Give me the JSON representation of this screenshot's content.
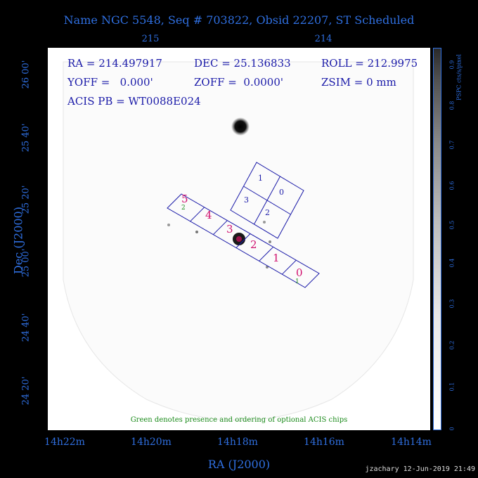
{
  "title": "Name NGC 5548, Seq # 703822, Obsid 22207, ST Scheduled",
  "top_axis_ticks": [
    "215",
    "214"
  ],
  "info": {
    "ra": "RA = 214.497917",
    "dec": "DEC = 25.136833",
    "roll": "ROLL = 212.9975",
    "yoff": "YOFF =   0.000'",
    "zoff": "ZOFF =  0.0000'",
    "zsim": "ZSIM = 0 mm",
    "acis_pb": "ACIS PB = WT0088E024"
  },
  "chips": {
    "acis_i": [
      "0",
      "1",
      "2",
      "3"
    ],
    "acis_s": [
      "0",
      "1",
      "2",
      "3",
      "4",
      "5"
    ],
    "optional": [
      "1",
      "2"
    ],
    "colors": {
      "acis_s_label": "#d0106e",
      "acis_i_label": "#1a1aa8",
      "outline": "#1a1aa8",
      "optional": "#1a8a1a"
    }
  },
  "note": "Green denotes presence and ordering of optional ACIS chips",
  "x_axis": {
    "label": "RA (J2000)",
    "ticks": [
      "14h22m",
      "14h20m",
      "14h18m",
      "14h16m",
      "14h14m"
    ]
  },
  "y_axis": {
    "label": "Dec (J2000)",
    "ticks": [
      "26 00'",
      "25 40'",
      "25 20'",
      "25 00'",
      "24 40'",
      "24 20'"
    ]
  },
  "colorbar": {
    "label": "PSPC cts/s/pixel",
    "ticks": [
      "0",
      "0.1",
      "0.2",
      "0.3",
      "0.4",
      "0.5",
      "0.6",
      "0.7",
      "0.8",
      "0.9"
    ]
  },
  "footer": "jzachary 12-Jun-2019 21:49"
}
